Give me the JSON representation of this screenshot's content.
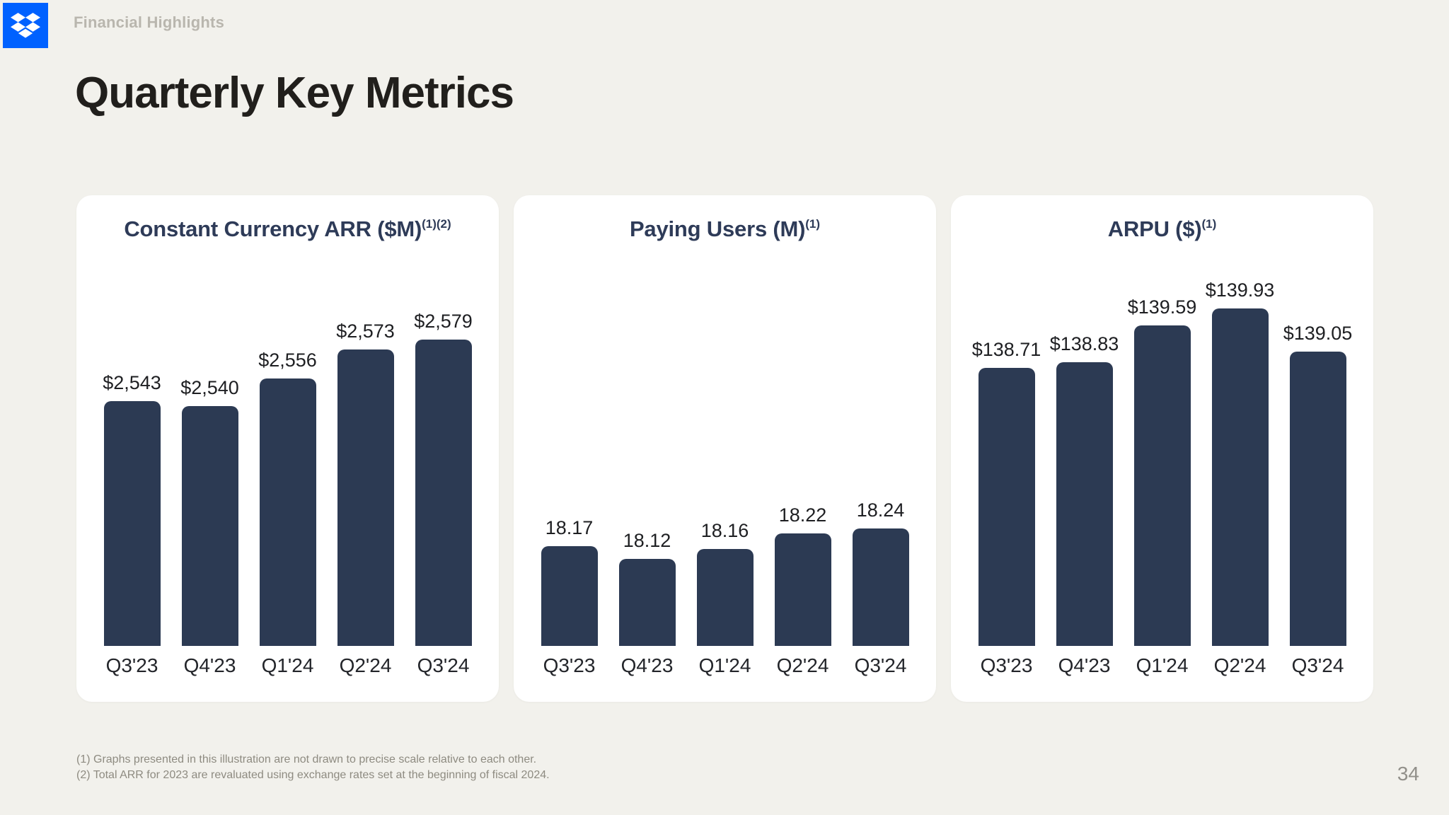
{
  "brand": {
    "logo_icon": "dropbox-logo",
    "logo_color": "#0061ff",
    "breadcrumb": "Financial Highlights"
  },
  "page": {
    "title": "Quarterly Key Metrics",
    "page_number": "34"
  },
  "colors": {
    "background": "#f2f1ec",
    "card_background": "#ffffff",
    "bar": "#2c3a53",
    "chart_title": "#2e3b58",
    "heading_text": "#211f1c",
    "muted_text": "#8e8b81",
    "accent_blue": "#0061ff"
  },
  "chart_data": [
    {
      "type": "bar",
      "title": "Constant Currency ARR ($M)",
      "title_superscript": "(1)(2)",
      "categories": [
        "Q3'23",
        "Q4'23",
        "Q1'24",
        "Q2'24",
        "Q3'24"
      ],
      "values": [
        2543,
        2540,
        2556,
        2573,
        2579
      ],
      "labels": [
        "$2,543",
        "$2,540",
        "$2,556",
        "$2,573",
        "$2,579"
      ],
      "ylim": [
        2400,
        2630
      ],
      "grid": false,
      "legend": false,
      "note": "data labels above bars, no axes drawn"
    },
    {
      "type": "bar",
      "title": "Paying Users (M)",
      "title_superscript": "(1)",
      "categories": [
        "Q3'23",
        "Q4'23",
        "Q1'24",
        "Q2'24",
        "Q3'24"
      ],
      "values": [
        18.17,
        18.12,
        18.16,
        18.22,
        18.24
      ],
      "labels": [
        "18.17",
        "18.12",
        "18.16",
        "18.22",
        "18.24"
      ],
      "ylim": [
        17.78,
        19.32
      ],
      "grid": false,
      "legend": false,
      "note": "data labels above bars, no axes drawn"
    },
    {
      "type": "bar",
      "title": "ARPU ($)",
      "title_superscript": "(1)",
      "categories": [
        "Q3'23",
        "Q4'23",
        "Q1'24",
        "Q2'24",
        "Q3'24"
      ],
      "values": [
        138.71,
        138.83,
        139.59,
        139.93,
        139.05
      ],
      "labels": [
        "$138.71",
        "$138.83",
        "$139.59",
        "$139.93",
        "$139.05"
      ],
      "ylim": [
        133.0,
        141.1
      ],
      "grid": false,
      "legend": false,
      "note": "data labels above bars, no axes drawn"
    }
  ],
  "footnotes": [
    "(1) Graphs presented in this illustration are not drawn to precise scale relative to each other.",
    "(2) Total ARR for 2023 are revaluated using exchange rates set at the beginning of fiscal 2024."
  ]
}
